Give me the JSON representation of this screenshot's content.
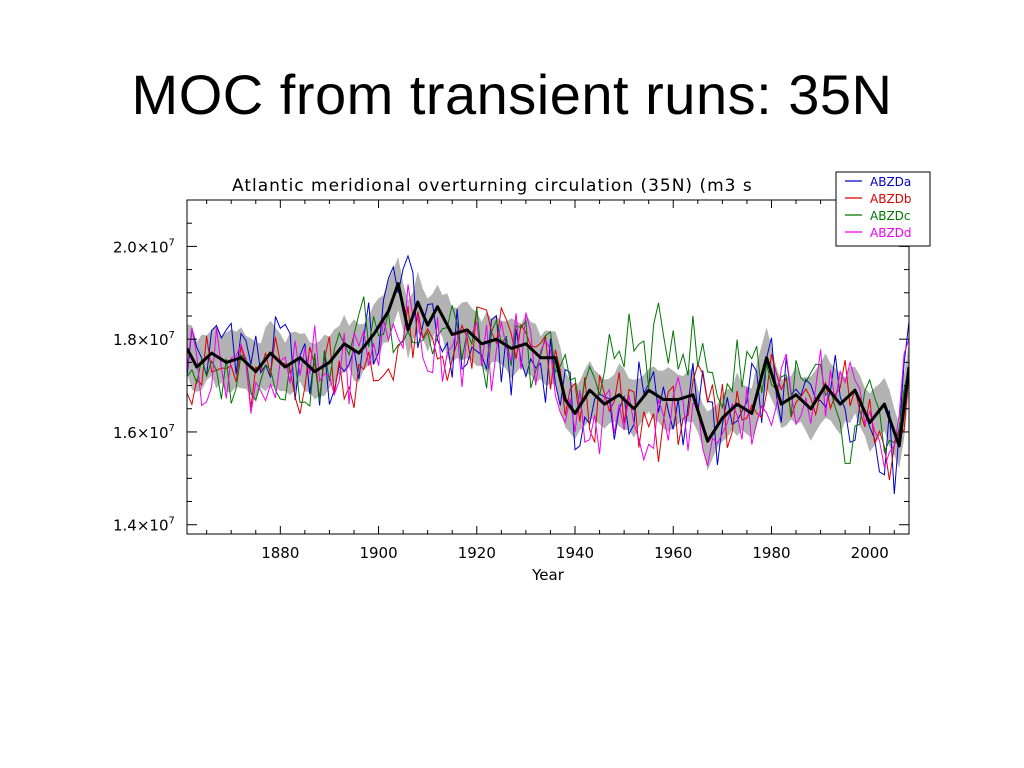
{
  "slide": {
    "title": "MOC from transient runs: 35N"
  },
  "chart_data": {
    "type": "line",
    "title": "Atlantic meridional overturning circulation (35N) (m3 s",
    "xlabel": "Year",
    "ylabel": "",
    "xlim": [
      1861,
      2008
    ],
    "ylim": [
      13800000,
      21000000
    ],
    "x_ticks": [
      1880,
      1900,
      1920,
      1940,
      1960,
      1980,
      2000
    ],
    "x_tick_labels": [
      "1880",
      "1900",
      "1920",
      "1940",
      "1960",
      "1980",
      "2000"
    ],
    "y_ticks": [
      {
        "value": 14000000,
        "mantissa": "1.4",
        "exponent": "7"
      },
      {
        "value": 16000000,
        "mantissa": "1.6",
        "exponent": "7"
      },
      {
        "value": 18000000,
        "mantissa": "1.8",
        "exponent": "7"
      },
      {
        "value": 20000000,
        "mantissa": "2.0",
        "exponent": "7"
      }
    ],
    "y_tick_times": "×10",
    "legend_position": "top-right",
    "colors": {
      "ABZDa": "#0000cc",
      "ABZDb": "#dd0000",
      "ABZDc": "#007700",
      "ABZDd": "#ee00ee",
      "mean": "#000000",
      "spread": "#9a9a9a"
    },
    "series": [
      {
        "name": "ABZDa",
        "color": "#0000cc",
        "anchors": {
          "x": [
            1861,
            1865,
            1870,
            1875,
            1880,
            1885,
            1890,
            1895,
            1900,
            1904,
            1910,
            1915,
            1920,
            1925,
            1930,
            1935,
            1940,
            1945,
            1950,
            1955,
            1960,
            1965,
            1970,
            1975,
            1980,
            1985,
            1990,
            1995,
            2000,
            2005,
            2008
          ],
          "y": [
            17800000,
            17600000,
            18300000,
            17400000,
            17800000,
            17300000,
            17100000,
            17700000,
            18000000,
            19800000,
            18100000,
            17900000,
            17600000,
            17800000,
            17400000,
            17600000,
            16100000,
            16500000,
            16600000,
            16700000,
            16500000,
            16900000,
            15800000,
            16400000,
            17200000,
            16500000,
            17100000,
            16900000,
            16300000,
            15500000,
            18400000
          ]
        }
      },
      {
        "name": "ABZDb",
        "color": "#dd0000",
        "anchors": {
          "x": [
            1861,
            1865,
            1870,
            1875,
            1880,
            1885,
            1890,
            1895,
            1900,
            1905,
            1910,
            1915,
            1920,
            1925,
            1930,
            1935,
            1940,
            1945,
            1950,
            1955,
            1960,
            1965,
            1970,
            1975,
            1980,
            1985,
            1990,
            1995,
            2000,
            2005,
            2008
          ],
          "y": [
            17500000,
            17200000,
            17300000,
            17000000,
            17500000,
            17100000,
            17600000,
            17000000,
            17200000,
            18000000,
            17800000,
            17700000,
            18000000,
            18300000,
            17800000,
            17300000,
            16600000,
            16400000,
            16500000,
            16200000,
            16400000,
            16700000,
            16300000,
            16600000,
            17100000,
            16500000,
            17200000,
            17300000,
            16300000,
            15400000,
            17000000
          ]
        }
      },
      {
        "name": "ABZDc",
        "color": "#007700",
        "anchors": {
          "x": [
            1861,
            1865,
            1870,
            1875,
            1880,
            1885,
            1890,
            1895,
            1900,
            1905,
            1910,
            1915,
            1920,
            1925,
            1930,
            1935,
            1940,
            1945,
            1950,
            1955,
            1960,
            1965,
            1970,
            1975,
            1980,
            1985,
            1990,
            1995,
            2000,
            2005,
            2008
          ],
          "y": [
            17600000,
            17000000,
            17200000,
            17500000,
            17400000,
            17000000,
            17300000,
            18300000,
            18300000,
            18400000,
            18000000,
            18100000,
            17800000,
            17500000,
            17800000,
            17500000,
            17200000,
            17000000,
            18000000,
            17600000,
            18200000,
            17600000,
            16900000,
            17700000,
            17200000,
            16800000,
            17000000,
            15300000,
            16600000,
            15400000,
            17000000
          ]
        }
      },
      {
        "name": "ABZDd",
        "color": "#ee00ee",
        "anchors": {
          "x": [
            1861,
            1865,
            1870,
            1875,
            1880,
            1885,
            1890,
            1895,
            1900,
            1905,
            1910,
            1915,
            1920,
            1925,
            1930,
            1935,
            1940,
            1945,
            1950,
            1955,
            1960,
            1965,
            1970,
            1975,
            1980,
            1985,
            1990,
            1995,
            2000,
            2005,
            2008
          ],
          "y": [
            17800000,
            17300000,
            17600000,
            17200000,
            17000000,
            17400000,
            17100000,
            17600000,
            17800000,
            18500000,
            17800000,
            18200000,
            17500000,
            17700000,
            18000000,
            17400000,
            16500000,
            16300000,
            16200000,
            16100000,
            16600000,
            16100000,
            15600000,
            16100000,
            16700000,
            16700000,
            17300000,
            17000000,
            16100000,
            15800000,
            17500000
          ]
        }
      },
      {
        "name": "",
        "color": "#000000",
        "role": "ensemble-mean",
        "anchors": {
          "x": [
            1861,
            1863,
            1866,
            1869,
            1872,
            1875,
            1878,
            1881,
            1884,
            1887,
            1890,
            1893,
            1896,
            1899,
            1902,
            1904,
            1906,
            1908,
            1910,
            1912,
            1915,
            1918,
            1921,
            1924,
            1927,
            1930,
            1933,
            1936,
            1938,
            1940,
            1943,
            1946,
            1949,
            1952,
            1955,
            1958,
            1961,
            1964,
            1967,
            1970,
            1973,
            1976,
            1979,
            1982,
            1985,
            1988,
            1991,
            1994,
            1997,
            2000,
            2003,
            2006,
            2008
          ],
          "y": [
            17800000,
            17400000,
            17700000,
            17500000,
            17600000,
            17300000,
            17700000,
            17400000,
            17600000,
            17300000,
            17500000,
            17900000,
            17700000,
            18100000,
            18600000,
            19200000,
            18200000,
            18800000,
            18300000,
            18700000,
            18100000,
            18200000,
            17900000,
            18000000,
            17800000,
            17900000,
            17600000,
            17600000,
            16700000,
            16400000,
            16900000,
            16600000,
            16800000,
            16500000,
            16900000,
            16700000,
            16700000,
            16800000,
            15800000,
            16300000,
            16600000,
            16400000,
            17600000,
            16600000,
            16800000,
            16500000,
            17000000,
            16600000,
            16900000,
            16200000,
            16600000,
            15700000,
            17400000
          ]
        }
      }
    ],
    "legend": [
      {
        "label": "ABZDa",
        "color": "#0000cc"
      },
      {
        "label": "ABZDb",
        "color": "#dd0000"
      },
      {
        "label": "ABZDc",
        "color": "#007700"
      },
      {
        "label": "ABZDd",
        "color": "#ee00ee"
      }
    ]
  }
}
